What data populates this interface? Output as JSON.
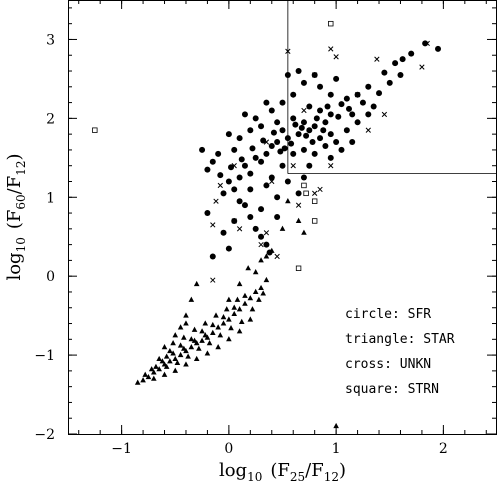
{
  "chart_data": {
    "type": "scatter",
    "xlabel": {
      "prefix": "log",
      "prefix_sub": "10",
      "open": "(F",
      "sub1": "25",
      "mid": "/F",
      "sub2": "12",
      "close": ")"
    },
    "ylabel": {
      "prefix": "log",
      "prefix_sub": "10",
      "open": "(F",
      "sub1": "60",
      "mid": "/F",
      "sub2": "12",
      "close": ")"
    },
    "xlim": [
      -1.5,
      2.5
    ],
    "ylim": [
      -2,
      3.5
    ],
    "x_ticks": [
      -1,
      0,
      1,
      2
    ],
    "y_ticks": [
      -2,
      -1,
      0,
      1,
      2,
      3
    ],
    "x_tick_labels": [
      "−1",
      "0",
      "1",
      "2"
    ],
    "y_tick_labels": [
      "−2",
      "−1",
      "0",
      "1",
      "2",
      "3"
    ],
    "grid": false,
    "legend": {
      "placement": "lower-right",
      "entries": [
        {
          "label": "circle: SFR",
          "marker": "circle"
        },
        {
          "label": "triangle: STAR",
          "marker": "triangle"
        },
        {
          "label": "cross: UNKN",
          "marker": "cross"
        },
        {
          "label": "square: STRN",
          "marker": "square"
        }
      ]
    },
    "reference_lines": [
      {
        "type": "vertical",
        "x": 0.55,
        "y_from": 1.3,
        "y_to": 3.5
      },
      {
        "type": "horizontal",
        "y": 1.3,
        "x_from": 0.55,
        "x_to": 2.5
      }
    ],
    "series": [
      {
        "name": "SFR",
        "marker": "circle",
        "points": [
          [
            1.95,
            2.88
          ],
          [
            1.83,
            2.95
          ],
          [
            1.62,
            2.75
          ],
          [
            1.7,
            2.82
          ],
          [
            1.45,
            2.58
          ],
          [
            1.3,
            2.4
          ],
          [
            1.4,
            2.32
          ],
          [
            1.55,
            2.7
          ],
          [
            1.6,
            2.55
          ],
          [
            1.2,
            2.3
          ],
          [
            1.1,
            2.25
          ],
          [
            1.15,
            2.05
          ],
          [
            1.05,
            2.18
          ],
          [
            0.95,
            2.05
          ],
          [
            0.9,
            1.95
          ],
          [
            0.85,
            2.1
          ],
          [
            0.8,
            1.9
          ],
          [
            0.75,
            1.85
          ],
          [
            0.7,
            1.95
          ],
          [
            0.65,
            1.8
          ],
          [
            0.6,
            2.0
          ],
          [
            0.55,
            1.75
          ],
          [
            0.5,
            1.85
          ],
          [
            0.45,
            1.7
          ],
          [
            0.4,
            1.65
          ],
          [
            0.35,
            1.55
          ],
          [
            0.3,
            1.45
          ],
          [
            0.25,
            1.5
          ],
          [
            0.2,
            1.3
          ],
          [
            0.15,
            1.4
          ],
          [
            0.1,
            1.25
          ],
          [
            0.05,
            1.1
          ],
          [
            0.0,
            1.2
          ],
          [
            -0.05,
            1.05
          ],
          [
            -0.1,
            1.55
          ],
          [
            -0.15,
            1.45
          ],
          [
            -0.2,
            1.35
          ],
          [
            0.0,
            1.8
          ],
          [
            0.1,
            1.75
          ],
          [
            0.2,
            1.85
          ],
          [
            0.3,
            1.9
          ],
          [
            0.4,
            2.1
          ],
          [
            0.6,
            2.3
          ],
          [
            0.7,
            2.45
          ],
          [
            0.8,
            2.55
          ],
          [
            0.65,
            2.6
          ],
          [
            0.85,
            2.4
          ],
          [
            0.95,
            2.3
          ],
          [
            1.0,
            2.5
          ],
          [
            0.5,
            2.2
          ],
          [
            0.15,
            0.9
          ],
          [
            0.2,
            0.75
          ],
          [
            0.25,
            0.6
          ],
          [
            0.3,
            0.5
          ],
          [
            0.35,
            0.4
          ],
          [
            0.38,
            0.3
          ],
          [
            0.1,
            0.95
          ],
          [
            0.05,
            0.7
          ],
          [
            -0.05,
            0.55
          ],
          [
            0.0,
            0.35
          ],
          [
            0.55,
            1.2
          ],
          [
            0.45,
            1.0
          ],
          [
            0.5,
            1.4
          ],
          [
            0.35,
            1.15
          ],
          [
            0.3,
            0.85
          ],
          [
            0.75,
            1.4
          ],
          [
            0.8,
            1.55
          ],
          [
            0.9,
            1.65
          ],
          [
            1.0,
            1.7
          ],
          [
            1.1,
            1.85
          ],
          [
            1.2,
            1.95
          ],
          [
            1.3,
            2.05
          ],
          [
            0.7,
            1.6
          ],
          [
            0.6,
            1.55
          ],
          [
            0.85,
            1.75
          ],
          [
            0.95,
            1.8
          ],
          [
            1.05,
            1.6
          ],
          [
            1.15,
            1.7
          ],
          [
            0.45,
            1.95
          ],
          [
            0.25,
            2.0
          ],
          [
            0.35,
            2.2
          ],
          [
            0.15,
            2.05
          ],
          [
            0.55,
            2.55
          ],
          [
            0.75,
            2.15
          ],
          [
            -0.25,
            1.6
          ],
          [
            -0.2,
            0.8
          ],
          [
            -0.15,
            0.25
          ],
          [
            0.05,
            1.6
          ],
          [
            0.95,
            1.5
          ],
          [
            0.65,
            1.05
          ],
          [
            0.45,
            0.75
          ],
          [
            0.4,
            1.25
          ],
          [
            0.2,
            1.1
          ],
          [
            0.7,
            1.25
          ],
          [
            0.88,
            1.85
          ],
          [
            0.78,
            1.7
          ],
          [
            0.68,
            1.88
          ],
          [
            0.58,
            1.68
          ],
          [
            0.48,
            1.58
          ],
          [
            0.92,
            2.15
          ],
          [
            1.02,
            2.02
          ],
          [
            1.12,
            2.12
          ],
          [
            1.25,
            2.2
          ],
          [
            1.35,
            2.15
          ],
          [
            1.5,
            2.45
          ],
          [
            0.82,
            2.0
          ],
          [
            0.72,
            1.78
          ],
          [
            0.62,
            1.92
          ],
          [
            0.52,
            1.62
          ],
          [
            0.42,
            1.82
          ],
          [
            0.32,
            1.72
          ],
          [
            0.22,
            1.62
          ],
          [
            0.12,
            1.48
          ],
          [
            0.02,
            1.38
          ],
          [
            -0.08,
            1.28
          ]
        ]
      },
      {
        "name": "STAR",
        "marker": "triangle",
        "points": [
          [
            -0.8,
            -1.32
          ],
          [
            -0.75,
            -1.28
          ],
          [
            -0.7,
            -1.22
          ],
          [
            -0.65,
            -1.18
          ],
          [
            -0.6,
            -1.12
          ],
          [
            -0.55,
            -1.08
          ],
          [
            -0.5,
            -1.05
          ],
          [
            -0.45,
            -1.0
          ],
          [
            -0.4,
            -0.95
          ],
          [
            -0.35,
            -0.9
          ],
          [
            -0.3,
            -0.85
          ],
          [
            -0.25,
            -0.82
          ],
          [
            -0.2,
            -0.78
          ],
          [
            -0.15,
            -0.72
          ],
          [
            -0.1,
            -0.65
          ],
          [
            -0.05,
            -0.6
          ],
          [
            0.0,
            -0.55
          ],
          [
            0.05,
            -0.48
          ],
          [
            0.1,
            -0.42
          ],
          [
            0.15,
            -0.35
          ],
          [
            0.2,
            -0.28
          ],
          [
            0.25,
            -0.2
          ],
          [
            0.3,
            -0.15
          ],
          [
            0.35,
            -0.05
          ],
          [
            -0.7,
            -1.3
          ],
          [
            -0.6,
            -1.25
          ],
          [
            -0.5,
            -1.2
          ],
          [
            -0.4,
            -1.12
          ],
          [
            -0.3,
            -1.05
          ],
          [
            -0.2,
            -0.98
          ],
          [
            -0.1,
            -0.9
          ],
          [
            0.0,
            -0.8
          ],
          [
            0.1,
            -0.7
          ],
          [
            0.2,
            -0.55
          ],
          [
            -0.55,
            -0.95
          ],
          [
            -0.45,
            -0.88
          ],
          [
            -0.35,
            -0.8
          ],
          [
            -0.25,
            -0.7
          ],
          [
            -0.15,
            -0.62
          ],
          [
            -0.05,
            -0.52
          ],
          [
            0.05,
            -0.4
          ],
          [
            0.15,
            -0.25
          ],
          [
            -0.65,
            -1.05
          ],
          [
            -0.58,
            -1.15
          ],
          [
            -0.48,
            -1.1
          ],
          [
            -0.38,
            -1.02
          ],
          [
            -0.28,
            -0.92
          ],
          [
            -0.18,
            -0.85
          ],
          [
            -0.08,
            -0.75
          ],
          [
            0.02,
            -0.66
          ],
          [
            0.12,
            -0.58
          ],
          [
            0.22,
            -0.42
          ],
          [
            0.28,
            -0.3
          ],
          [
            0.32,
            -0.22
          ],
          [
            -0.45,
            -0.65
          ],
          [
            -0.4,
            -0.5
          ],
          [
            -0.35,
            -0.3
          ],
          [
            -0.3,
            -0.1
          ],
          [
            0.25,
            0.05
          ],
          [
            0.3,
            0.2
          ],
          [
            0.35,
            0.25
          ],
          [
            0.4,
            0.32
          ],
          [
            -0.6,
            -0.9
          ],
          [
            -0.52,
            -0.85
          ],
          [
            -0.42,
            -0.78
          ],
          [
            -0.32,
            -0.68
          ],
          [
            -0.22,
            -0.6
          ],
          [
            -0.12,
            -0.5
          ],
          [
            -0.02,
            -0.42
          ],
          [
            0.08,
            -0.3
          ],
          [
            -0.85,
            -1.35
          ],
          [
            -0.78,
            -1.25
          ],
          [
            -0.68,
            -1.15
          ],
          [
            -0.58,
            -1.02
          ],
          [
            -0.72,
            -1.18
          ],
          [
            -0.62,
            -1.08
          ],
          [
            -0.52,
            -0.98
          ],
          [
            -0.42,
            -0.92
          ],
          [
            -0.32,
            -0.82
          ],
          [
            -0.22,
            -0.75
          ],
          [
            0.55,
            0.95
          ],
          [
            0.65,
            0.7
          ],
          [
            0.7,
            0.55
          ],
          [
            0.5,
            0.6
          ],
          [
            1.0,
            -1.9
          ],
          [
            -0.5,
            -0.75
          ],
          [
            -0.4,
            -0.6
          ],
          [
            0.0,
            -0.3
          ],
          [
            0.1,
            -0.1
          ],
          [
            0.18,
            0.1
          ]
        ]
      },
      {
        "name": "UNKN",
        "marker": "cross",
        "points": [
          [
            0.55,
            2.85
          ],
          [
            0.8,
            2.55
          ],
          [
            0.95,
            2.88
          ],
          [
            1.0,
            2.78
          ],
          [
            1.2,
            2.3
          ],
          [
            1.38,
            2.75
          ],
          [
            1.85,
            2.95
          ],
          [
            -0.15,
            0.65
          ],
          [
            -0.12,
            0.95
          ],
          [
            -0.08,
            1.15
          ],
          [
            0.05,
            0.7
          ],
          [
            0.1,
            0.6
          ],
          [
            0.3,
            0.4
          ],
          [
            0.35,
            0.55
          ],
          [
            0.45,
            0.25
          ],
          [
            0.05,
            1.4
          ],
          [
            0.35,
            1.7
          ],
          [
            0.8,
            1.05
          ],
          [
            0.85,
            1.1
          ],
          [
            0.7,
            2.1
          ],
          [
            1.3,
            1.85
          ],
          [
            1.45,
            2.05
          ],
          [
            0.6,
            1.4
          ],
          [
            0.95,
            1.4
          ],
          [
            -0.15,
            -0.05
          ],
          [
            1.8,
            2.65
          ],
          [
            0.4,
            1.2
          ],
          [
            0.65,
            0.9
          ]
        ]
      },
      {
        "name": "STRN",
        "marker": "square",
        "points": [
          [
            -1.25,
            1.85
          ],
          [
            0.95,
            3.2
          ],
          [
            0.7,
            1.15
          ],
          [
            0.72,
            1.05
          ],
          [
            0.8,
            0.95
          ],
          [
            0.65,
            0.1
          ],
          [
            0.8,
            0.7
          ]
        ]
      }
    ]
  }
}
